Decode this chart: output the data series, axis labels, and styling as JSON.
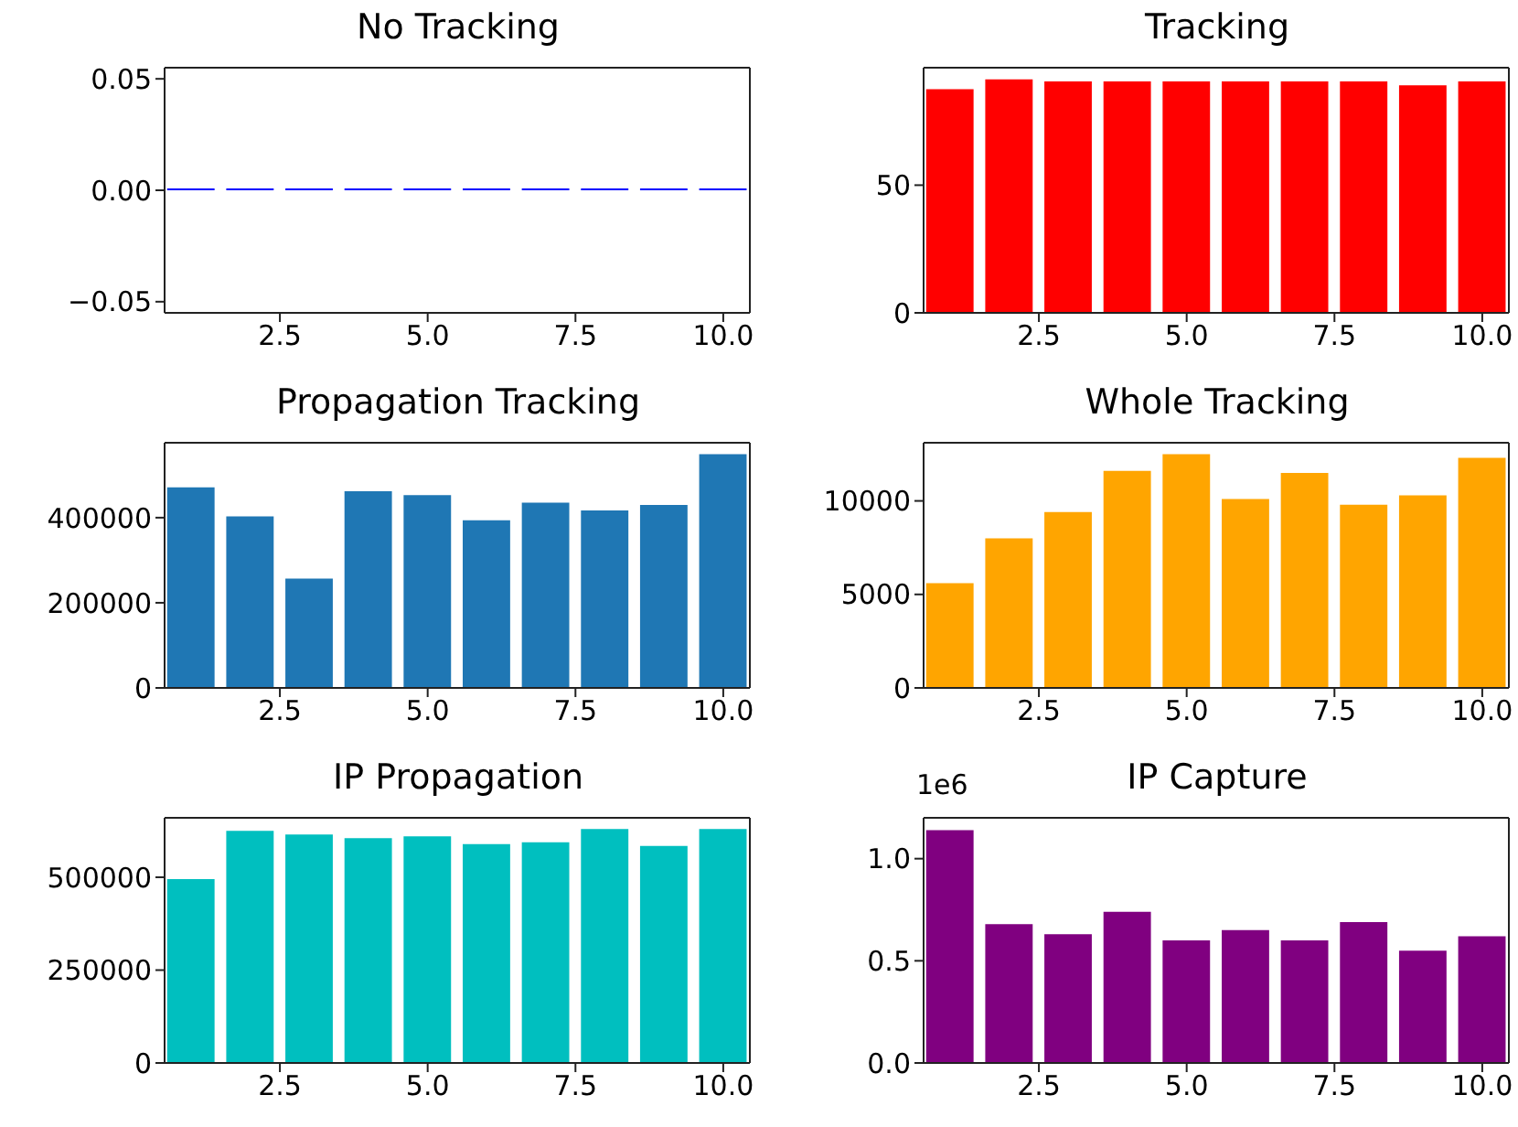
{
  "chart_data": [
    {
      "type": "bar",
      "title": "No Tracking",
      "x": [
        1,
        2,
        3,
        4,
        5,
        6,
        7,
        8,
        9,
        10
      ],
      "values": [
        0,
        0,
        0,
        0,
        0,
        0,
        0,
        0,
        0,
        0
      ],
      "color": "#0000ff",
      "xlim": [
        0.55,
        10.45
      ],
      "xticks": [
        {
          "value": 2.5,
          "label": "2.5"
        },
        {
          "value": 5,
          "label": "5.0"
        },
        {
          "value": 7.5,
          "label": "7.5"
        },
        {
          "value": 10,
          "label": "10.0"
        }
      ],
      "ylim": [
        -0.055,
        0.055
      ],
      "yticks": [
        {
          "value": -0.05,
          "label": "−0.05"
        },
        {
          "value": 0,
          "label": "0.00"
        },
        {
          "value": 0.05,
          "label": "0.05"
        }
      ],
      "grid": false,
      "legend": false
    },
    {
      "type": "bar",
      "title": "Tracking",
      "x": [
        1,
        2,
        3,
        4,
        5,
        6,
        7,
        8,
        9,
        10
      ],
      "values": [
        87.6,
        91.4,
        90.6,
        90.6,
        90.6,
        90.6,
        90.6,
        90.6,
        89.1,
        90.6
      ],
      "color": "#ff0000",
      "xlim": [
        0.55,
        10.45
      ],
      "xticks": [
        {
          "value": 2.5,
          "label": "2.5"
        },
        {
          "value": 5,
          "label": "5.0"
        },
        {
          "value": 7.5,
          "label": "7.5"
        },
        {
          "value": 10,
          "label": "10.0"
        }
      ],
      "ylim": [
        0,
        96
      ],
      "yticks": [
        0,
        50
      ],
      "grid": false,
      "legend": false
    },
    {
      "type": "bar",
      "title": "Propagation Tracking",
      "x": [
        1,
        2,
        3,
        4,
        5,
        6,
        7,
        8,
        9,
        10
      ],
      "values": [
        471000,
        403000,
        257000,
        462000,
        453000,
        394000,
        435000,
        417000,
        430000,
        549000
      ],
      "color": "#1f77b4",
      "xlim": [
        0.55,
        10.45
      ],
      "xticks": [
        {
          "value": 2.5,
          "label": "2.5"
        },
        {
          "value": 5,
          "label": "5.0"
        },
        {
          "value": 7.5,
          "label": "7.5"
        },
        {
          "value": 10,
          "label": "10.0"
        }
      ],
      "ylim": [
        0,
        576000
      ],
      "yticks": [
        0,
        200000,
        400000
      ],
      "grid": false,
      "legend": false
    },
    {
      "type": "bar",
      "title": "Whole Tracking",
      "x": [
        1,
        2,
        3,
        4,
        5,
        6,
        7,
        8,
        9,
        10
      ],
      "values": [
        5600,
        8000,
        9400,
        11600,
        12500,
        10100,
        11500,
        9800,
        10300,
        12300
      ],
      "color": "#ffa500",
      "xlim": [
        0.55,
        10.45
      ],
      "xticks": [
        {
          "value": 2.5,
          "label": "2.5"
        },
        {
          "value": 5,
          "label": "5.0"
        },
        {
          "value": 7.5,
          "label": "7.5"
        },
        {
          "value": 10,
          "label": "10.0"
        }
      ],
      "ylim": [
        0,
        13110
      ],
      "yticks": [
        0,
        5000,
        10000
      ],
      "grid": false,
      "legend": false
    },
    {
      "type": "bar",
      "title": "IP Propagation",
      "x": [
        1,
        2,
        3,
        4,
        5,
        6,
        7,
        8,
        9,
        10
      ],
      "values": [
        495000,
        625000,
        615000,
        605000,
        610000,
        589000,
        594000,
        630000,
        584000,
        630000
      ],
      "color": "#00bfbf",
      "xlim": [
        0.55,
        10.45
      ],
      "xticks": [
        {
          "value": 2.5,
          "label": "2.5"
        },
        {
          "value": 5,
          "label": "5.0"
        },
        {
          "value": 7.5,
          "label": "7.5"
        },
        {
          "value": 10,
          "label": "10.0"
        }
      ],
      "ylim": [
        0,
        660000
      ],
      "yticks": [
        0,
        250000,
        500000
      ],
      "grid": false,
      "legend": false
    },
    {
      "type": "bar",
      "title": "IP Capture",
      "annotations": [
        "1e6"
      ],
      "x": [
        1,
        2,
        3,
        4,
        5,
        6,
        7,
        8,
        9,
        10
      ],
      "values": [
        1.14,
        0.68,
        0.63,
        0.74,
        0.6,
        0.65,
        0.6,
        0.69,
        0.55,
        0.62
      ],
      "color": "#800080",
      "xlim": [
        0.55,
        10.45
      ],
      "xticks": [
        {
          "value": 2.5,
          "label": "2.5"
        },
        {
          "value": 5,
          "label": "5.0"
        },
        {
          "value": 7.5,
          "label": "7.5"
        },
        {
          "value": 10,
          "label": "10.0"
        }
      ],
      "ylim": [
        0,
        1.2
      ],
      "yticks": [
        {
          "value": 0,
          "label": "0.0"
        },
        0.5,
        {
          "value": 1,
          "label": "1.0"
        }
      ],
      "grid": false,
      "legend": false
    }
  ]
}
